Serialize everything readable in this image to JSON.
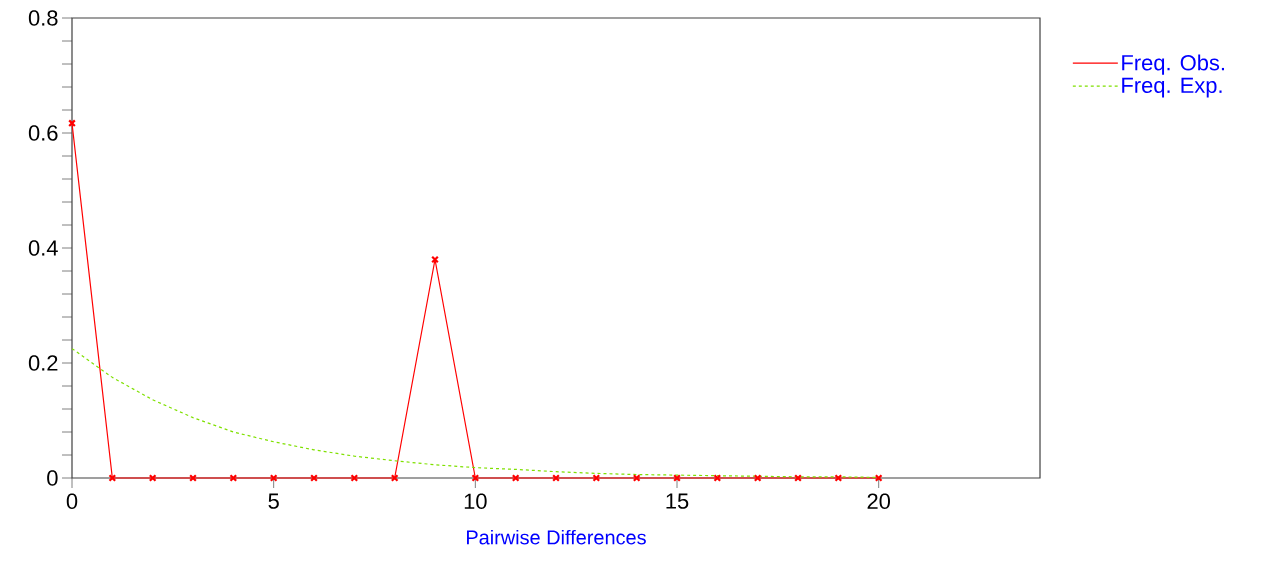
{
  "chart_data": {
    "type": "line",
    "xlabel": "Pairwise Differences",
    "x": [
      0,
      1,
      2,
      3,
      4,
      5,
      6,
      7,
      8,
      9,
      10,
      11,
      12,
      13,
      14,
      15,
      16,
      17,
      18,
      19,
      20
    ],
    "series": [
      {
        "name": "Freq. Obs.",
        "color": "#ff0000",
        "marker": "cross",
        "line_style": "solid",
        "values": [
          0.617,
          0,
          0,
          0,
          0,
          0,
          0,
          0,
          0,
          0.38,
          0,
          0,
          0,
          0,
          0,
          0,
          0,
          0,
          0,
          0,
          0
        ]
      },
      {
        "name": "Freq. Exp.",
        "color": "#7fe000",
        "marker": "none",
        "line_style": "dashed",
        "values": [
          0.225,
          0.175,
          0.136,
          0.105,
          0.08,
          0.063,
          0.049,
          0.038,
          0.03,
          0.023,
          0.018,
          0.015,
          0.011,
          0.008,
          0.006,
          0.005,
          0.004,
          0.003,
          0.002,
          0.002,
          0.001
        ]
      }
    ],
    "xlim": [
      0,
      24
    ],
    "ylim": [
      0,
      0.8
    ],
    "xticks": [
      0,
      5,
      10,
      15,
      20
    ],
    "yticks": [
      0,
      0.2,
      0.4,
      0.6,
      0.8
    ],
    "grid": false,
    "legend": "top right"
  }
}
